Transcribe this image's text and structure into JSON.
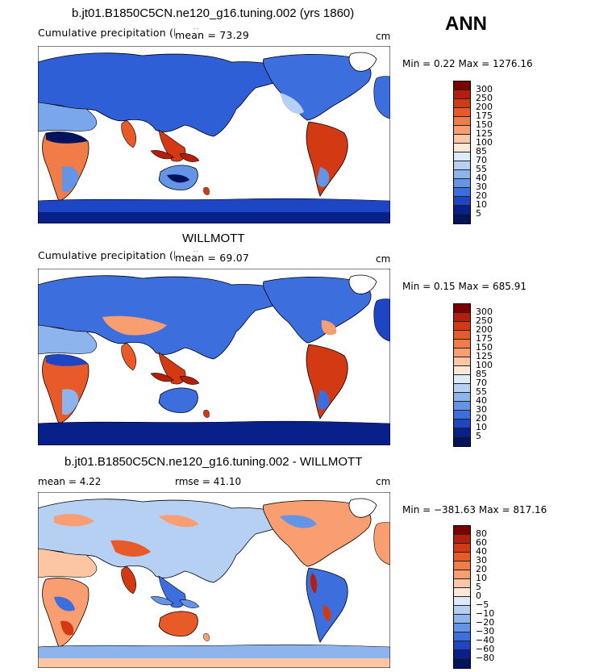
{
  "season": "ANN",
  "panels": [
    {
      "title": "b.jt01.B1850C5CN.ne120_g16.tuning.002 (yrs 1860)",
      "subtitle": "Cumulative precipitation (land)",
      "mean_text": "mean =   73.29",
      "units": "cm",
      "minmax": "Min =   0.22 Max = 1276.16",
      "levels": [
        "300",
        "250",
        "200",
        "175",
        "150",
        "125",
        "100",
        "85",
        "70",
        "55",
        "40",
        "30",
        "20",
        "10",
        "5"
      ]
    },
    {
      "title": "WILLMOTT",
      "subtitle": "Cumulative precipitation (land)",
      "mean_text": "mean =   69.07",
      "units": "cm",
      "minmax": "Min =   0.15 Max = 685.91",
      "levels": [
        "300",
        "250",
        "200",
        "175",
        "150",
        "125",
        "100",
        "85",
        "70",
        "55",
        "40",
        "30",
        "20",
        "10",
        "5"
      ]
    },
    {
      "title": "b.jt01.B1850C5CN.ne120_g16.tuning.002 - WILLMOTT",
      "mean_text": "mean =    4.22",
      "rmse_text": "rmse =   41.10",
      "units": "cm",
      "minmax": "Min = −381.63 Max = 817.16",
      "levels": [
        "80",
        "60",
        "40",
        "30",
        "20",
        "10",
        "5",
        "0",
        "−5",
        "−10",
        "−20",
        "−30",
        "−40",
        "−60",
        "−80"
      ]
    }
  ],
  "colors": {
    "abs_scale": [
      "#7a0000",
      "#b41e0c",
      "#d33a14",
      "#e85a28",
      "#f27c48",
      "#f89e70",
      "#fcc6a4",
      "#fde8d8",
      "#ddeafa",
      "#b6d0f4",
      "#8eb4ee",
      "#6494e6",
      "#3c6ede",
      "#1e46c4",
      "#08208a",
      "#00145e"
    ],
    "diff_scale": [
      "#7a0000",
      "#b41e0c",
      "#d33a14",
      "#e85a28",
      "#f27c48",
      "#f89e70",
      "#fcc6a4",
      "#fde8d8",
      "#ddeafa",
      "#b6d0f4",
      "#8eb4ee",
      "#6494e6",
      "#3c6ede",
      "#1e46c4",
      "#08208a",
      "#00145e"
    ]
  }
}
